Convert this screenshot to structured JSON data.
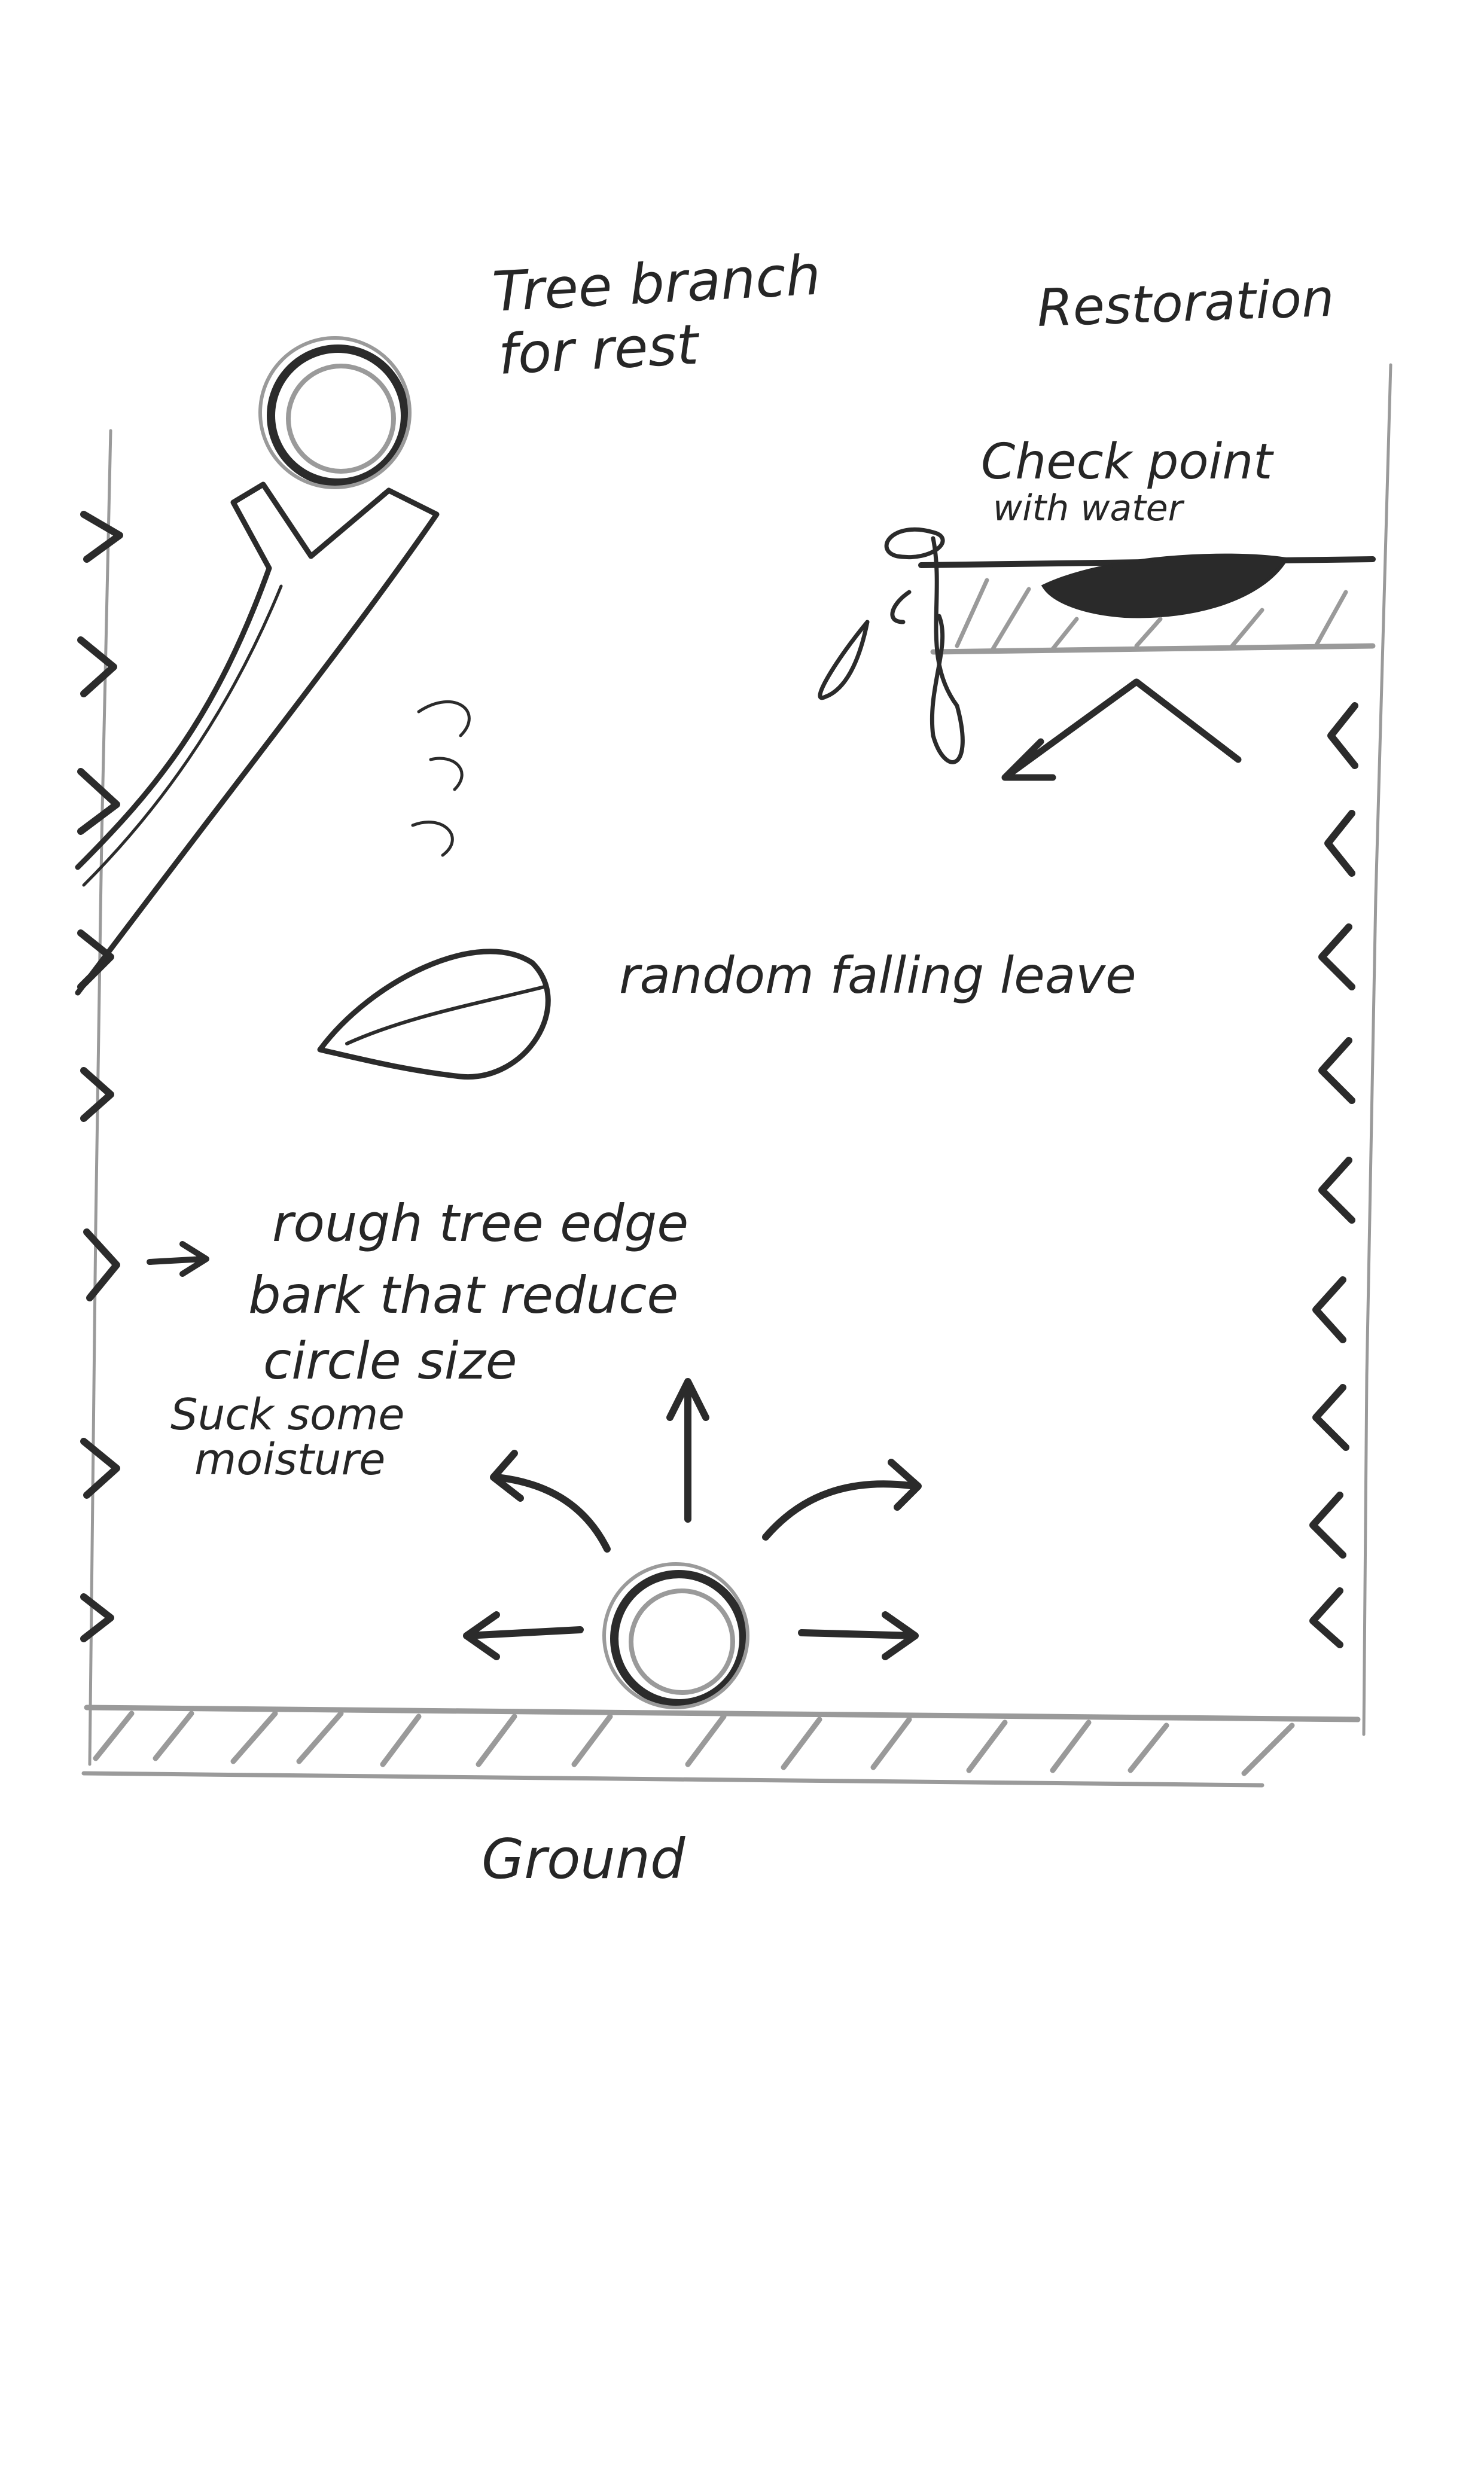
{
  "labels": {
    "tree_branch_line1": "Tree branch",
    "tree_branch_line2": "for rest",
    "restoration": "Restoration",
    "checkpoint_line1": "Check point",
    "checkpoint_line2": "with water",
    "random_falling_leave": "random falling leave",
    "rough_tree_edge_line1": "rough tree edge",
    "rough_tree_edge_line2": "bark that reduce",
    "rough_tree_edge_line3": "circle size",
    "suck_moisture_line1": "Suck some",
    "suck_moisture_line2": "moisture",
    "ground": "Ground"
  },
  "colors": {
    "paper": "#ffffff",
    "pencil": "#2b2b2b",
    "pencil_faint": "#9a9a9a",
    "water": "#2a2a2a"
  },
  "icons": {
    "spike": "chevron",
    "movement": "arrow",
    "player": "circle"
  }
}
